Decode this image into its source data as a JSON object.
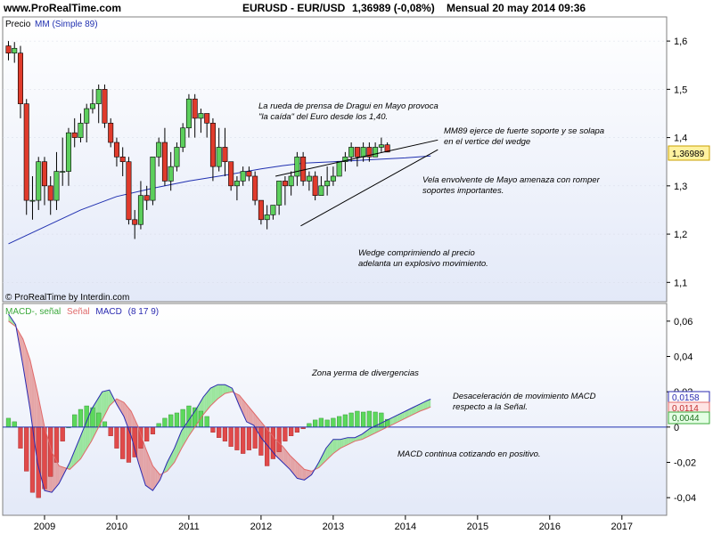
{
  "header": {
    "site": "www.ProRealTime.com",
    "symbol": "EURUSD - EUR/USD",
    "price": "1,36989 (-0,08%)",
    "period_date": "Mensual  20 may 2014 09:36"
  },
  "colors": {
    "up": "#5ccf5c",
    "down": "#e03b2c",
    "ma": "#2030b0",
    "macd": "#2a2ab0",
    "signal": "#e06a6a",
    "hist_pos": "#5cd85c",
    "hist_neg": "#e04a4a",
    "top_bg_top": "#ffffff",
    "top_bg_bottom": "#e3e9f8"
  },
  "chart_data": [
    {
      "type": "candlestick",
      "title": "Precio",
      "legend": [
        "Precio",
        "MM (Simple 89)"
      ],
      "legend_price": "Precio",
      "legend_ma": "MM (Simple 89)",
      "ylim": [
        1.06,
        1.65
      ],
      "yticks": [
        "1,6",
        "1,5",
        "1,4",
        "1,3",
        "1,2",
        "1,1"
      ],
      "ytick_values": [
        1.6,
        1.5,
        1.4,
        1.3,
        1.2,
        1.1
      ],
      "xticks": [
        "2009",
        "2010",
        "2011",
        "2012",
        "2013",
        "2014",
        "2015",
        "2016",
        "2017"
      ],
      "xtick_years": [
        2009,
        2010,
        2011,
        2012,
        2013,
        2014,
        2015,
        2016,
        2017
      ],
      "x_range": [
        2008.42,
        2017.62
      ],
      "start": 2008.5,
      "current_price_label": "1,36989",
      "current_price": 1.3699,
      "ohlc": [
        [
          1.59,
          1.6,
          1.56,
          1.575
        ],
        [
          1.575,
          1.598,
          1.555,
          1.585
        ],
        [
          1.575,
          1.59,
          1.44,
          1.47
        ],
        [
          1.47,
          1.48,
          1.24,
          1.27
        ],
        [
          1.27,
          1.32,
          1.23,
          1.27
        ],
        [
          1.27,
          1.36,
          1.25,
          1.35
        ],
        [
          1.35,
          1.36,
          1.26,
          1.3
        ],
        [
          1.3,
          1.32,
          1.24,
          1.27
        ],
        [
          1.27,
          1.37,
          1.25,
          1.33
        ],
        [
          1.33,
          1.4,
          1.3,
          1.33
        ],
        [
          1.33,
          1.42,
          1.3,
          1.41
        ],
        [
          1.41,
          1.44,
          1.38,
          1.4
        ],
        [
          1.4,
          1.45,
          1.39,
          1.43
        ],
        [
          1.43,
          1.47,
          1.39,
          1.46
        ],
        [
          1.46,
          1.5,
          1.45,
          1.47
        ],
        [
          1.47,
          1.51,
          1.43,
          1.5
        ],
        [
          1.5,
          1.51,
          1.42,
          1.43
        ],
        [
          1.43,
          1.44,
          1.38,
          1.39
        ],
        [
          1.39,
          1.4,
          1.34,
          1.36
        ],
        [
          1.36,
          1.38,
          1.32,
          1.35
        ],
        [
          1.35,
          1.36,
          1.22,
          1.23
        ],
        [
          1.23,
          1.25,
          1.19,
          1.22
        ],
        [
          1.22,
          1.31,
          1.21,
          1.28
        ],
        [
          1.28,
          1.3,
          1.25,
          1.27
        ],
        [
          1.27,
          1.36,
          1.26,
          1.36
        ],
        [
          1.36,
          1.4,
          1.34,
          1.39
        ],
        [
          1.39,
          1.42,
          1.3,
          1.31
        ],
        [
          1.31,
          1.37,
          1.29,
          1.34
        ],
        [
          1.34,
          1.39,
          1.33,
          1.38
        ],
        [
          1.38,
          1.43,
          1.37,
          1.42
        ],
        [
          1.42,
          1.49,
          1.4,
          1.48
        ],
        [
          1.48,
          1.49,
          1.4,
          1.44
        ],
        [
          1.44,
          1.46,
          1.41,
          1.45
        ],
        [
          1.45,
          1.45,
          1.4,
          1.43
        ],
        [
          1.43,
          1.44,
          1.31,
          1.34
        ],
        [
          1.34,
          1.42,
          1.33,
          1.38
        ],
        [
          1.38,
          1.42,
          1.32,
          1.35
        ],
        [
          1.35,
          1.35,
          1.29,
          1.3
        ],
        [
          1.3,
          1.32,
          1.27,
          1.31
        ],
        [
          1.31,
          1.34,
          1.3,
          1.33
        ],
        [
          1.33,
          1.34,
          1.31,
          1.32
        ],
        [
          1.32,
          1.33,
          1.26,
          1.27
        ],
        [
          1.27,
          1.27,
          1.22,
          1.23
        ],
        [
          1.23,
          1.26,
          1.21,
          1.24
        ],
        [
          1.24,
          1.26,
          1.23,
          1.26
        ],
        [
          1.26,
          1.31,
          1.24,
          1.31
        ],
        [
          1.31,
          1.32,
          1.26,
          1.3
        ],
        [
          1.3,
          1.33,
          1.28,
          1.32
        ],
        [
          1.32,
          1.37,
          1.3,
          1.36
        ],
        [
          1.36,
          1.37,
          1.3,
          1.31
        ],
        [
          1.31,
          1.33,
          1.29,
          1.32
        ],
        [
          1.32,
          1.33,
          1.27,
          1.28
        ],
        [
          1.28,
          1.32,
          1.28,
          1.3
        ],
        [
          1.3,
          1.34,
          1.28,
          1.31
        ],
        [
          1.31,
          1.34,
          1.3,
          1.32
        ],
        [
          1.32,
          1.35,
          1.32,
          1.35
        ],
        [
          1.35,
          1.37,
          1.33,
          1.36
        ],
        [
          1.36,
          1.39,
          1.35,
          1.38
        ],
        [
          1.38,
          1.38,
          1.34,
          1.36
        ],
        [
          1.36,
          1.39,
          1.35,
          1.38
        ],
        [
          1.38,
          1.39,
          1.35,
          1.36
        ],
        [
          1.36,
          1.39,
          1.36,
          1.38
        ],
        [
          1.38,
          1.4,
          1.37,
          1.385
        ],
        [
          1.385,
          1.39,
          1.37,
          1.37
        ]
      ],
      "moving_average_mm89": [
        [
          2008.5,
          1.18
        ],
        [
          2009.0,
          1.215
        ],
        [
          2009.5,
          1.25
        ],
        [
          2010.0,
          1.278
        ],
        [
          2010.5,
          1.295
        ],
        [
          2011.0,
          1.31
        ],
        [
          2011.5,
          1.322
        ],
        [
          2012.0,
          1.335
        ],
        [
          2012.3,
          1.342
        ],
        [
          2012.6,
          1.347
        ],
        [
          2013.0,
          1.35
        ],
        [
          2013.5,
          1.354
        ],
        [
          2014.0,
          1.358
        ],
        [
          2014.35,
          1.362
        ]
      ],
      "trendlines": [
        [
          [
            2012.55,
            1.217
          ],
          [
            2014.45,
            1.375
          ]
        ],
        [
          [
            2012.2,
            1.32
          ],
          [
            2014.45,
            1.395
          ]
        ]
      ],
      "annotations": [
        "La rueda de prensa de Dragui en Mayo provoca",
        "\"la caída\" del Euro desde los 1,40.",
        "MM89 ejerce de fuerte soporte y se solapa",
        "en el vertice del wedge",
        "Vela envolvente de Mayo amenaza con romper",
        "soportes importantes.",
        "Wedge comprimiendo al precio",
        "adelanta un explosivo movimiento.",
        "© ProRealTime by Interdin.com"
      ]
    },
    {
      "type": "line+bar",
      "title": "MACD (8 17 9)",
      "legend_histogram": "MACD-, señal",
      "legend_signal": "Señal",
      "legend_macd": "MACD",
      "legend_params": "(8 17 9)",
      "ylim": [
        -0.05,
        0.07
      ],
      "yticks": [
        "0,06",
        "0,04",
        "0,02",
        "0",
        "-0,02",
        "-0,04"
      ],
      "ytick_values": [
        0.06,
        0.04,
        0.02,
        0.0,
        -0.02,
        -0.04
      ],
      "value_labels": [
        "0,0158",
        "0,0114",
        "0,0044"
      ],
      "macd": [
        [
          2008.5,
          0.064
        ],
        [
          2008.6,
          0.058
        ],
        [
          2008.7,
          0.035
        ],
        [
          2008.8,
          0.01
        ],
        [
          2008.9,
          -0.02
        ],
        [
          2009.0,
          -0.036
        ],
        [
          2009.1,
          -0.037
        ],
        [
          2009.2,
          -0.032
        ],
        [
          2009.35,
          -0.02
        ],
        [
          2009.5,
          -0.005
        ],
        [
          2009.65,
          0.01
        ],
        [
          2009.8,
          0.02
        ],
        [
          2009.9,
          0.021
        ],
        [
          2010.0,
          0.013
        ],
        [
          2010.1,
          0.006
        ],
        [
          2010.2,
          -0.005
        ],
        [
          2010.3,
          -0.02
        ],
        [
          2010.4,
          -0.033
        ],
        [
          2010.5,
          -0.036
        ],
        [
          2010.6,
          -0.03
        ],
        [
          2010.7,
          -0.02
        ],
        [
          2010.8,
          -0.012
        ],
        [
          2010.9,
          -0.002
        ],
        [
          2011.0,
          0.004
        ],
        [
          2011.1,
          0.01
        ],
        [
          2011.2,
          0.017
        ],
        [
          2011.3,
          0.022
        ],
        [
          2011.4,
          0.024
        ],
        [
          2011.5,
          0.024
        ],
        [
          2011.6,
          0.022
        ],
        [
          2011.7,
          0.012
        ],
        [
          2011.8,
          0.003
        ],
        [
          2011.9,
          0.001
        ],
        [
          2012.0,
          -0.006
        ],
        [
          2012.1,
          -0.011
        ],
        [
          2012.2,
          -0.016
        ],
        [
          2012.3,
          -0.02
        ],
        [
          2012.4,
          -0.024
        ],
        [
          2012.5,
          -0.029
        ],
        [
          2012.6,
          -0.03
        ],
        [
          2012.7,
          -0.027
        ],
        [
          2012.8,
          -0.02
        ],
        [
          2012.9,
          -0.012
        ],
        [
          2013.0,
          -0.007
        ],
        [
          2013.1,
          -0.007
        ],
        [
          2013.2,
          -0.006
        ],
        [
          2013.3,
          -0.006
        ],
        [
          2013.4,
          -0.004
        ],
        [
          2013.5,
          -0.001
        ],
        [
          2013.6,
          0.001
        ],
        [
          2013.7,
          0.003
        ],
        [
          2013.8,
          0.005
        ],
        [
          2013.9,
          0.007
        ],
        [
          2014.0,
          0.009
        ],
        [
          2014.1,
          0.011
        ],
        [
          2014.2,
          0.013
        ],
        [
          2014.3,
          0.015
        ],
        [
          2014.35,
          0.0158
        ]
      ],
      "signal": [
        [
          2008.5,
          0.06
        ],
        [
          2008.6,
          0.057
        ],
        [
          2008.7,
          0.05
        ],
        [
          2008.8,
          0.038
        ],
        [
          2008.9,
          0.02
        ],
        [
          2009.0,
          0.0
        ],
        [
          2009.1,
          -0.014
        ],
        [
          2009.2,
          -0.022
        ],
        [
          2009.35,
          -0.024
        ],
        [
          2009.5,
          -0.018
        ],
        [
          2009.65,
          -0.008
        ],
        [
          2009.8,
          0.004
        ],
        [
          2009.9,
          0.012
        ],
        [
          2010.0,
          0.016
        ],
        [
          2010.1,
          0.014
        ],
        [
          2010.2,
          0.009
        ],
        [
          2010.3,
          0.0
        ],
        [
          2010.4,
          -0.012
        ],
        [
          2010.5,
          -0.022
        ],
        [
          2010.6,
          -0.027
        ],
        [
          2010.7,
          -0.025
        ],
        [
          2010.8,
          -0.02
        ],
        [
          2010.9,
          -0.012
        ],
        [
          2011.0,
          -0.005
        ],
        [
          2011.1,
          0.001
        ],
        [
          2011.2,
          0.007
        ],
        [
          2011.3,
          0.012
        ],
        [
          2011.4,
          0.016
        ],
        [
          2011.5,
          0.019
        ],
        [
          2011.6,
          0.02
        ],
        [
          2011.7,
          0.018
        ],
        [
          2011.8,
          0.013
        ],
        [
          2011.9,
          0.008
        ],
        [
          2012.0,
          0.003
        ],
        [
          2012.1,
          -0.002
        ],
        [
          2012.2,
          -0.007
        ],
        [
          2012.3,
          -0.011
        ],
        [
          2012.4,
          -0.016
        ],
        [
          2012.5,
          -0.02
        ],
        [
          2012.6,
          -0.024
        ],
        [
          2012.7,
          -0.025
        ],
        [
          2012.8,
          -0.023
        ],
        [
          2012.9,
          -0.019
        ],
        [
          2013.0,
          -0.015
        ],
        [
          2013.1,
          -0.012
        ],
        [
          2013.2,
          -0.01
        ],
        [
          2013.3,
          -0.008
        ],
        [
          2013.4,
          -0.007
        ],
        [
          2013.5,
          -0.005
        ],
        [
          2013.6,
          -0.003
        ],
        [
          2013.7,
          -0.001
        ],
        [
          2013.8,
          0.001
        ],
        [
          2013.9,
          0.003
        ],
        [
          2014.0,
          0.005
        ],
        [
          2014.1,
          0.007
        ],
        [
          2014.2,
          0.009
        ],
        [
          2014.3,
          0.0105
        ],
        [
          2014.35,
          0.0114
        ]
      ],
      "histogram": [
        0.005,
        0.003,
        -0.012,
        -0.025,
        -0.037,
        -0.04,
        -0.035,
        -0.028,
        -0.02,
        -0.008,
        0.0,
        0.007,
        0.01,
        0.012,
        0.011,
        0.008,
        0.003,
        -0.005,
        -0.012,
        -0.018,
        -0.02,
        -0.017,
        -0.012,
        -0.008,
        -0.004,
        0.002,
        0.005,
        0.007,
        0.008,
        0.01,
        0.012,
        0.011,
        0.009,
        0.006,
        -0.003,
        -0.006,
        -0.008,
        -0.011,
        -0.013,
        -0.015,
        -0.013,
        -0.012,
        -0.016,
        -0.022,
        -0.018,
        -0.014,
        -0.008,
        -0.005,
        -0.003,
        -0.001,
        0.002,
        0.004,
        0.005,
        0.004,
        0.005,
        0.006,
        0.007,
        0.008,
        0.009,
        0.0085,
        0.009,
        0.0085,
        0.008,
        0.0044
      ],
      "annotations": [
        "Zona yerma de divergencias",
        "Desaceleración de movimiento MACD",
        "respecto a la Señal.",
        "MACD continua cotizando en positivo."
      ]
    }
  ]
}
